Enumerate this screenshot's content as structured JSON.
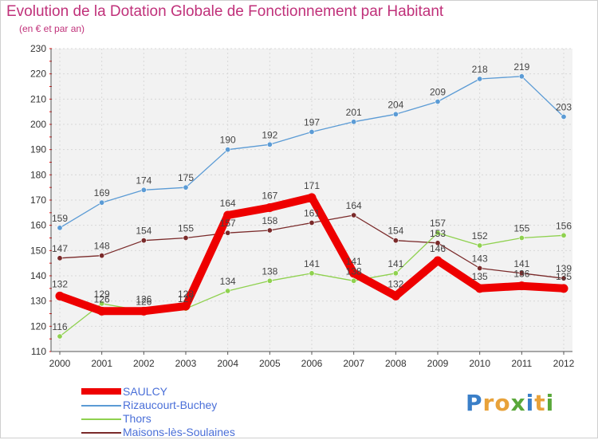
{
  "header": {
    "title": "Evolution de la Dotation Globale de Fonctionnement par Habitant",
    "subtitle": "(en € et par an)"
  },
  "logo": {
    "text": "Proxiti",
    "letters": [
      "P",
      "r",
      "o",
      "x",
      "i",
      "t",
      "i"
    ],
    "colors": [
      "#3a7fc8",
      "#e8a23a",
      "#e8a23a",
      "#5aa83a",
      "#3a7fc8",
      "#e8a23a",
      "#5aa83a"
    ]
  },
  "chart_data": {
    "type": "line",
    "categories": [
      "2000",
      "2001",
      "2002",
      "2003",
      "2004",
      "2005",
      "2006",
      "2007",
      "2008",
      "2009",
      "2010",
      "2011",
      "2012"
    ],
    "ylim": [
      110,
      230
    ],
    "yticks": [
      110,
      120,
      130,
      140,
      150,
      160,
      170,
      180,
      190,
      200,
      210,
      220,
      230
    ],
    "grid": true,
    "series": [
      {
        "name": "SAULCY",
        "color": "#ee0000",
        "values": [
          132,
          126,
          126,
          128,
          164,
          167,
          171,
          141,
          132,
          146,
          135,
          136,
          135
        ]
      },
      {
        "name": "Rizaucourt-Buchey",
        "color": "#5b9bd5",
        "values": [
          159,
          169,
          174,
          175,
          190,
          192,
          197,
          201,
          204,
          209,
          218,
          219,
          203
        ]
      },
      {
        "name": "Thors",
        "color": "#8fd14f",
        "values": [
          116,
          129,
          126,
          127,
          134,
          138,
          141,
          138,
          141,
          157,
          152,
          155,
          156
        ]
      },
      {
        "name": "Maisons-lès-Soulaines",
        "color": "#7a2a2a",
        "values": [
          147,
          148,
          154,
          155,
          157,
          158,
          161,
          164,
          154,
          153,
          143,
          141,
          139
        ]
      }
    ]
  }
}
